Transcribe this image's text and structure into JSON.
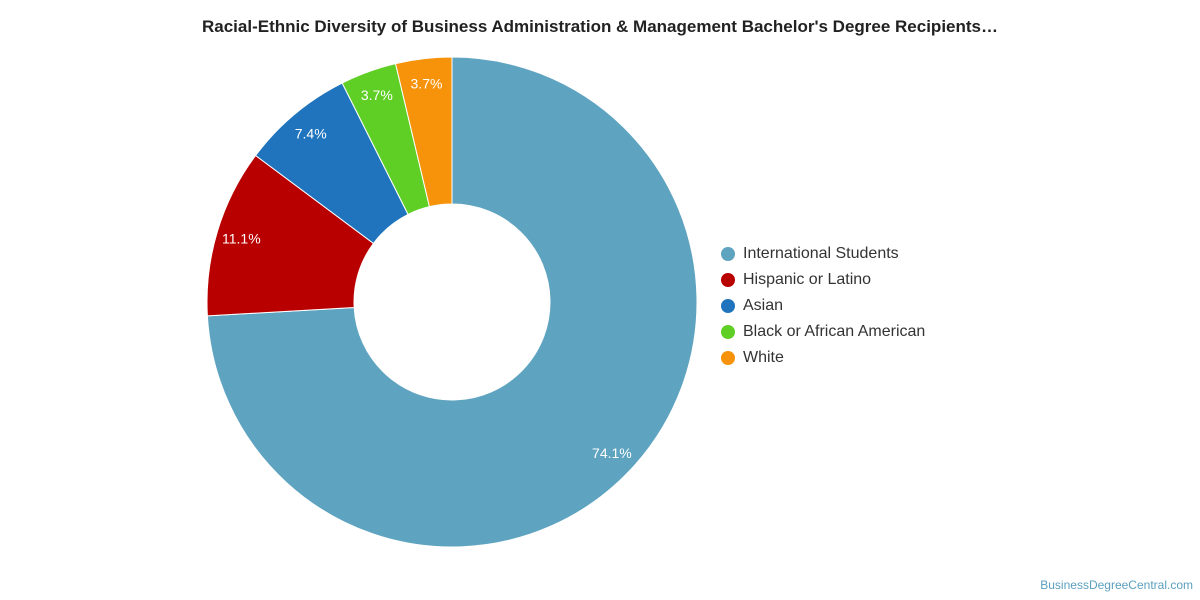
{
  "chart_data": {
    "type": "pie",
    "title": "Racial-Ethnic Diversity of Business Administration & Management Bachelor's Degree Recipients…",
    "categories": [
      "International Students",
      "Hispanic or Latino",
      "Asian",
      "Black or African American",
      "White"
    ],
    "values": [
      74.1,
      11.1,
      7.4,
      3.7,
      3.7
    ],
    "labels": [
      "74.1%",
      "11.1%",
      "7.4%",
      "3.7%",
      "3.7%"
    ],
    "colors": [
      "#5ea3c0",
      "#b80000",
      "#1f74bd",
      "#5fcf26",
      "#f7920b"
    ],
    "donut": true,
    "legend_position": "right"
  },
  "credit": "BusinessDegreeCentral.com"
}
